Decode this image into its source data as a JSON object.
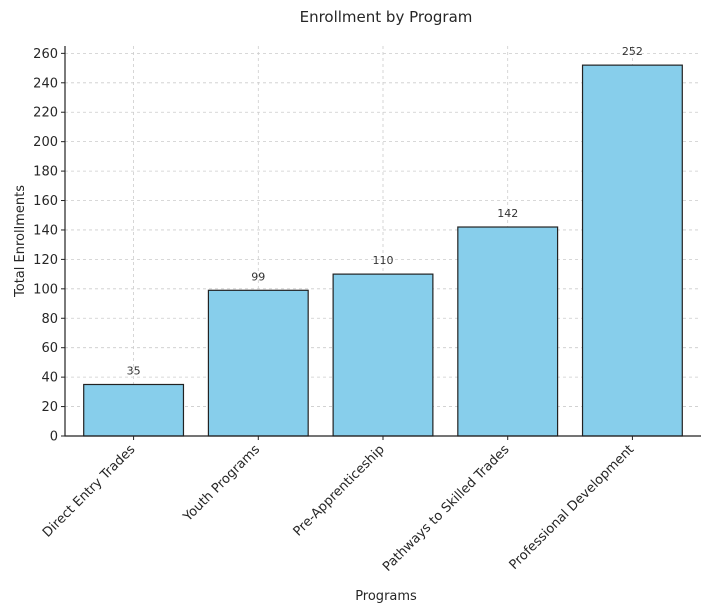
{
  "chart_data": {
    "type": "bar",
    "title": "Enrollment by Program",
    "xlabel": "Programs",
    "ylabel": "Total Enrollments",
    "categories": [
      "Direct Entry Trades",
      "Youth Programs",
      "Pre-Apprenticeship",
      "Pathways to Skilled Trades",
      "Professional Development"
    ],
    "values": [
      35,
      99,
      110,
      142,
      252
    ],
    "data_labels": [
      "35",
      "99",
      "110",
      "142",
      "252"
    ],
    "ylim": [
      0,
      265
    ],
    "yticks": [
      0,
      20,
      40,
      60,
      80,
      100,
      120,
      140,
      160,
      180,
      200,
      220,
      240,
      260
    ],
    "grid": true,
    "bar_color": "#87ceeb",
    "edge_color": "#222222"
  }
}
